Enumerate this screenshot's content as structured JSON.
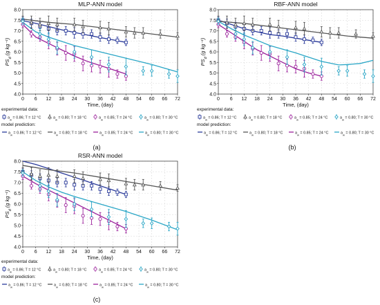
{
  "figure": {
    "colors": {
      "T12": "#2a3a9a",
      "T18": "#555555",
      "T24": "#9b1f9b",
      "T30": "#2aa6c6"
    },
    "legend": {
      "experimental_header": "experimental data:",
      "model_header": "model prediction:",
      "entries": [
        {
          "series": "T12",
          "text": "a_w = 0.86; T = 12 °C"
        },
        {
          "series": "T18",
          "text": "a_w = 0.80; T = 18 °C"
        },
        {
          "series": "T24",
          "text": "a_w = 0.85; T = 24 °C"
        },
        {
          "series": "T30",
          "text": "a_w = 0.80; T = 30 °C"
        }
      ]
    }
  },
  "chart_data": [
    {
      "type": "line",
      "panel_label": "(a)",
      "title": "MLP-ANN model",
      "xlabel": "Time, (day)",
      "ylabel": "PS_d (g kg⁻¹)",
      "xlim": [
        0,
        72
      ],
      "ylim": [
        4.0,
        8.0
      ],
      "xticks": [
        0,
        6,
        12,
        18,
        24,
        30,
        36,
        42,
        48,
        54,
        60,
        66,
        72
      ],
      "yticks": [
        4.0,
        4.5,
        5.0,
        5.5,
        6.0,
        6.5,
        7.0,
        7.5,
        8.0
      ],
      "grid": true,
      "experimental": [
        {
          "series": "T12",
          "x": [
            0,
            4,
            8,
            12,
            16,
            20,
            24,
            28,
            32,
            36,
            40,
            44,
            48
          ],
          "y": [
            7.5,
            7.35,
            7.2,
            7.1,
            7.0,
            7.0,
            6.9,
            6.85,
            6.85,
            6.7,
            6.6,
            6.55,
            6.45
          ],
          "err": [
            0.15,
            0.2,
            0.2,
            0.25,
            0.2,
            0.2,
            0.25,
            0.2,
            0.2,
            0.2,
            0.2,
            0.15,
            0.15
          ]
        },
        {
          "series": "T18",
          "x": [
            0,
            4,
            8,
            12,
            16,
            24,
            28,
            36,
            40,
            48,
            52,
            56,
            64,
            72
          ],
          "y": [
            7.5,
            7.4,
            7.3,
            7.35,
            7.3,
            7.3,
            7.2,
            7.15,
            7.1,
            6.95,
            6.9,
            6.9,
            6.85,
            6.75
          ],
          "err": [
            0.2,
            0.3,
            0.3,
            0.35,
            0.3,
            0.3,
            0.3,
            0.3,
            0.3,
            0.25,
            0.25,
            0.25,
            0.2,
            0.15
          ]
        },
        {
          "series": "T24",
          "x": [
            0,
            4,
            8,
            12,
            16,
            20,
            24,
            28,
            32,
            36,
            40,
            44,
            48
          ],
          "y": [
            7.3,
            6.85,
            6.7,
            6.45,
            6.15,
            5.95,
            5.9,
            5.45,
            5.35,
            5.3,
            5.2,
            4.95,
            4.85
          ],
          "err": [
            0.15,
            0.15,
            0.2,
            0.3,
            0.3,
            0.35,
            0.35,
            0.35,
            0.3,
            0.3,
            0.4,
            0.2,
            0.2
          ]
        },
        {
          "series": "T30",
          "x": [
            0,
            8,
            12,
            16,
            24,
            32,
            40,
            48,
            56,
            60,
            68,
            72
          ],
          "y": [
            7.45,
            6.85,
            6.6,
            6.2,
            6.0,
            5.75,
            5.4,
            5.3,
            5.1,
            5.1,
            4.95,
            4.85
          ],
          "err": [
            0.15,
            0.25,
            0.3,
            0.3,
            0.3,
            0.35,
            0.35,
            0.4,
            0.2,
            0.25,
            0.2,
            0.3
          ]
        }
      ],
      "predicted": [
        {
          "series": "T12",
          "x": [
            0,
            6,
            12,
            18,
            24,
            30,
            36,
            42,
            48
          ],
          "y": [
            7.48,
            7.35,
            7.2,
            7.05,
            6.92,
            6.8,
            6.68,
            6.57,
            6.45
          ]
        },
        {
          "series": "T18",
          "x": [
            0,
            12,
            24,
            36,
            48,
            60,
            72
          ],
          "y": [
            7.55,
            7.4,
            7.3,
            7.15,
            7.0,
            6.85,
            6.7
          ]
        },
        {
          "series": "T24",
          "x": [
            0,
            6,
            12,
            18,
            24,
            30,
            36,
            42,
            48
          ],
          "y": [
            7.3,
            6.7,
            6.4,
            6.1,
            5.8,
            5.55,
            5.35,
            5.15,
            4.95
          ]
        },
        {
          "series": "T30",
          "x": [
            0,
            6,
            12,
            18,
            24,
            36,
            48,
            60,
            72
          ],
          "y": [
            7.4,
            6.95,
            6.7,
            6.5,
            6.3,
            6.0,
            5.7,
            5.4,
            5.05
          ]
        }
      ]
    },
    {
      "type": "line",
      "panel_label": "(b)",
      "title": "RBF-ANN model",
      "xlabel": "Time, (day)",
      "ylabel": "PS_d (g kg⁻¹)",
      "xlim": [
        0,
        72
      ],
      "ylim": [
        4.0,
        8.0
      ],
      "xticks": [
        0,
        6,
        12,
        18,
        24,
        30,
        36,
        42,
        48,
        54,
        60,
        66,
        72
      ],
      "yticks": [
        4.0,
        4.5,
        5.0,
        5.5,
        6.0,
        6.5,
        7.0,
        7.5,
        8.0
      ],
      "grid": true,
      "experimental": [
        {
          "series": "T12",
          "x": [
            0,
            4,
            8,
            12,
            16,
            20,
            24,
            28,
            32,
            36,
            40,
            44,
            48
          ],
          "y": [
            7.5,
            7.35,
            7.2,
            7.1,
            7.0,
            7.0,
            6.9,
            6.85,
            6.85,
            6.7,
            6.6,
            6.55,
            6.45
          ],
          "err": [
            0.15,
            0.2,
            0.2,
            0.25,
            0.2,
            0.2,
            0.25,
            0.2,
            0.2,
            0.2,
            0.2,
            0.15,
            0.15
          ]
        },
        {
          "series": "T18",
          "x": [
            0,
            4,
            8,
            12,
            16,
            24,
            28,
            36,
            40,
            48,
            52,
            56,
            64,
            72
          ],
          "y": [
            7.5,
            7.4,
            7.3,
            7.35,
            7.3,
            7.3,
            7.2,
            7.15,
            7.1,
            6.95,
            6.9,
            6.9,
            6.85,
            6.75
          ],
          "err": [
            0.2,
            0.3,
            0.3,
            0.35,
            0.3,
            0.3,
            0.3,
            0.3,
            0.3,
            0.25,
            0.25,
            0.25,
            0.2,
            0.15
          ]
        },
        {
          "series": "T24",
          "x": [
            0,
            4,
            8,
            12,
            16,
            20,
            24,
            28,
            32,
            36,
            40,
            44,
            48
          ],
          "y": [
            7.3,
            6.85,
            6.7,
            6.45,
            6.15,
            5.95,
            5.9,
            5.45,
            5.35,
            5.3,
            5.2,
            4.95,
            4.85
          ],
          "err": [
            0.15,
            0.15,
            0.2,
            0.3,
            0.3,
            0.35,
            0.35,
            0.35,
            0.3,
            0.3,
            0.4,
            0.2,
            0.2
          ]
        },
        {
          "series": "T30",
          "x": [
            0,
            8,
            12,
            16,
            24,
            32,
            40,
            48,
            56,
            60,
            68,
            72
          ],
          "y": [
            7.45,
            6.85,
            6.6,
            6.2,
            6.0,
            5.75,
            5.4,
            5.3,
            5.1,
            5.1,
            4.95,
            4.85
          ],
          "err": [
            0.15,
            0.25,
            0.3,
            0.3,
            0.3,
            0.35,
            0.35,
            0.4,
            0.2,
            0.25,
            0.2,
            0.3
          ]
        }
      ],
      "predicted": [
        {
          "series": "T12",
          "x": [
            0,
            6,
            12,
            18,
            24,
            30,
            36,
            42,
            48
          ],
          "y": [
            7.5,
            7.3,
            7.1,
            6.95,
            6.82,
            6.75,
            6.65,
            6.55,
            6.45
          ]
        },
        {
          "series": "T18",
          "x": [
            0,
            12,
            24,
            36,
            48,
            60,
            72
          ],
          "y": [
            7.45,
            7.35,
            7.2,
            7.05,
            6.9,
            6.75,
            6.65
          ]
        },
        {
          "series": "T24",
          "x": [
            0,
            6,
            12,
            18,
            24,
            30,
            36,
            42,
            48
          ],
          "y": [
            7.3,
            6.9,
            6.5,
            6.1,
            5.8,
            5.5,
            5.2,
            5.0,
            4.85
          ]
        },
        {
          "series": "T30",
          "x": [
            0,
            6,
            12,
            18,
            24,
            36,
            48,
            56,
            60,
            66,
            72
          ],
          "y": [
            7.45,
            7.1,
            6.8,
            6.55,
            6.3,
            5.95,
            5.55,
            5.38,
            5.4,
            5.45,
            5.6
          ]
        }
      ]
    },
    {
      "type": "line",
      "panel_label": "(c)",
      "title": "RSR-ANN model",
      "xlabel": "Time, (day)",
      "ylabel": "PS_d (g kg⁻¹)",
      "xlim": [
        0,
        72
      ],
      "ylim": [
        4.0,
        8.0
      ],
      "xticks": [
        0,
        6,
        12,
        18,
        24,
        30,
        36,
        42,
        48,
        54,
        60,
        66,
        72
      ],
      "yticks": [
        4.0,
        4.5,
        5.0,
        5.5,
        6.0,
        6.5,
        7.0,
        7.5,
        8.0
      ],
      "grid": true,
      "experimental": [
        {
          "series": "T12",
          "x": [
            0,
            4,
            8,
            12,
            16,
            20,
            24,
            28,
            32,
            36,
            40,
            44,
            48
          ],
          "y": [
            7.5,
            7.35,
            7.2,
            7.1,
            7.0,
            7.0,
            6.9,
            6.85,
            6.85,
            6.7,
            6.6,
            6.55,
            6.45
          ],
          "err": [
            0.15,
            0.2,
            0.2,
            0.25,
            0.2,
            0.2,
            0.25,
            0.2,
            0.2,
            0.2,
            0.2,
            0.15,
            0.15
          ]
        },
        {
          "series": "T18",
          "x": [
            0,
            4,
            8,
            12,
            16,
            24,
            28,
            36,
            40,
            48,
            52,
            56,
            64,
            72
          ],
          "y": [
            7.5,
            7.4,
            7.3,
            7.35,
            7.3,
            7.3,
            7.2,
            7.15,
            7.1,
            6.95,
            6.9,
            6.9,
            6.85,
            6.75
          ],
          "err": [
            0.2,
            0.3,
            0.3,
            0.35,
            0.3,
            0.3,
            0.3,
            0.3,
            0.3,
            0.25,
            0.25,
            0.25,
            0.2,
            0.15
          ]
        },
        {
          "series": "T24",
          "x": [
            0,
            4,
            8,
            12,
            16,
            20,
            24,
            28,
            32,
            36,
            40,
            44,
            48
          ],
          "y": [
            7.3,
            6.85,
            6.7,
            6.45,
            6.15,
            5.95,
            5.9,
            5.45,
            5.35,
            5.3,
            5.2,
            4.95,
            4.85
          ],
          "err": [
            0.15,
            0.15,
            0.2,
            0.3,
            0.3,
            0.35,
            0.35,
            0.35,
            0.3,
            0.3,
            0.4,
            0.2,
            0.2
          ]
        },
        {
          "series": "T30",
          "x": [
            0,
            8,
            12,
            16,
            24,
            32,
            40,
            48,
            56,
            60,
            68,
            72
          ],
          "y": [
            7.45,
            6.85,
            6.6,
            6.2,
            6.0,
            5.75,
            5.4,
            5.3,
            5.1,
            5.1,
            4.95,
            4.85
          ],
          "err": [
            0.15,
            0.25,
            0.3,
            0.3,
            0.3,
            0.35,
            0.35,
            0.4,
            0.2,
            0.25,
            0.2,
            0.3
          ]
        }
      ],
      "predicted": [
        {
          "series": "T12",
          "x": [
            0,
            6,
            12,
            18,
            24,
            30,
            36,
            42,
            48
          ],
          "y": [
            8.0,
            7.85,
            7.65,
            7.45,
            7.25,
            7.05,
            6.85,
            6.65,
            6.45
          ]
        },
        {
          "series": "T18",
          "x": [
            0,
            12,
            24,
            36,
            48,
            60,
            72
          ],
          "y": [
            7.8,
            7.6,
            7.45,
            7.25,
            7.05,
            6.85,
            6.65
          ]
        },
        {
          "series": "T24",
          "x": [
            0,
            6,
            12,
            18,
            24,
            30,
            36,
            42,
            48
          ],
          "y": [
            7.3,
            6.95,
            6.65,
            6.35,
            6.05,
            5.75,
            5.45,
            5.15,
            4.85
          ]
        },
        {
          "series": "T30",
          "x": [
            0,
            6,
            12,
            18,
            24,
            36,
            48,
            60,
            72
          ],
          "y": [
            7.5,
            7.1,
            6.8,
            6.55,
            6.35,
            6.0,
            5.65,
            5.25,
            4.8
          ]
        }
      ]
    }
  ]
}
